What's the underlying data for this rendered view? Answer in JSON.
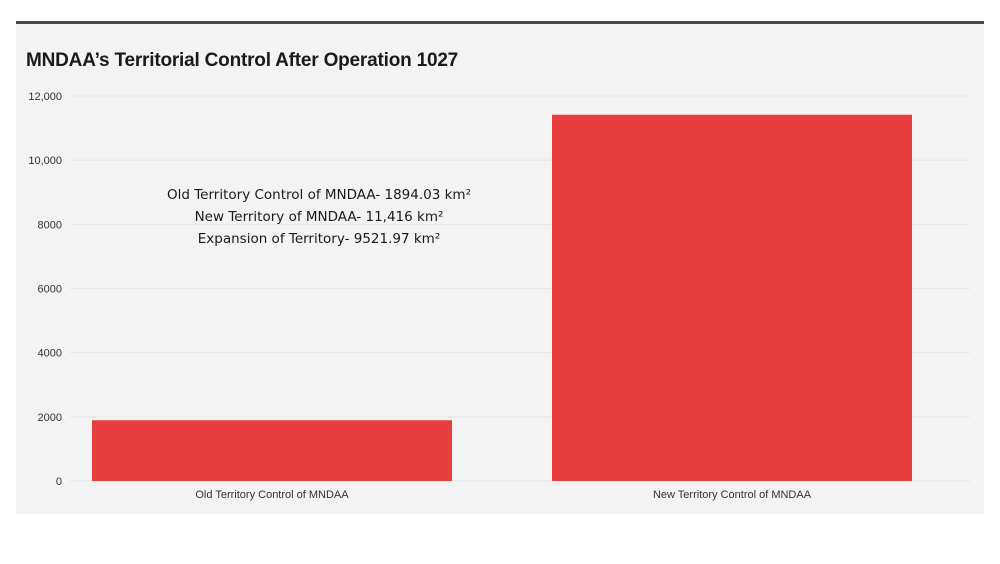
{
  "colors": {
    "bar": "#e83f3e",
    "background": "#f3f3f3",
    "gridline": "#e6e6e6",
    "title": "#1a1a1a",
    "top_rule": "#4a4a4a"
  },
  "chart_data": {
    "type": "bar",
    "title": "MNDAA’s Territorial Control After Operation 1027",
    "xlabel": "",
    "ylabel": "",
    "categories": [
      "Old Territory Control of MNDAA",
      "New Territory Control of MNDAA"
    ],
    "values": [
      1894.03,
      11416
    ],
    "ylim": [
      0,
      12000
    ],
    "yticks": [
      0,
      2000,
      4000,
      6000,
      8000,
      10000,
      12000
    ],
    "ytick_labels": [
      "0",
      "2000",
      "4000",
      "6000",
      "8000",
      "10,000",
      "12,000"
    ],
    "grid": true,
    "legend": "none",
    "annotations": [
      "Old Territory Control of MNDAA- 1894.03 km²",
      "New Territory of MNDAA- 11,416  km²",
      "Expansion of Territory- 9521.97 km²"
    ]
  }
}
